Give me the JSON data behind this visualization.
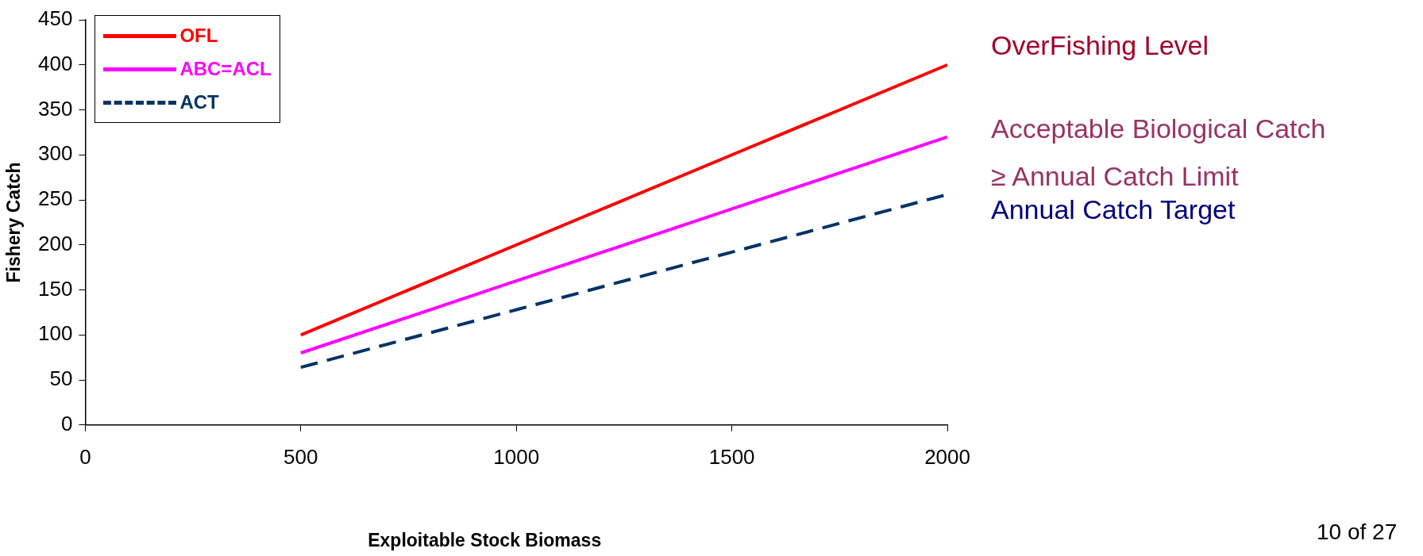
{
  "chart_data": {
    "type": "line",
    "xlabel": "Exploitable Stock Biomass",
    "ylabel": "Fishery Catch",
    "x": [
      500,
      1000,
      1500,
      2000
    ],
    "series": [
      {
        "name": "OFL",
        "color": "#ff0000",
        "values": [
          100,
          200,
          300,
          400
        ]
      },
      {
        "name": "ABC=ACL",
        "color": "#ff00ff",
        "values": [
          80,
          160,
          240,
          320
        ]
      },
      {
        "name": "ACT",
        "color": "#003366",
        "values": [
          64,
          128,
          192,
          256
        ],
        "line_style": "dashed"
      }
    ],
    "xlim": [
      0,
      2000
    ],
    "xticks": [
      0,
      500,
      1000,
      1500,
      2000
    ],
    "ylim": [
      0,
      450
    ],
    "yticks": [
      0,
      50,
      100,
      150,
      200,
      250,
      300,
      350,
      400,
      450
    ],
    "grid": false,
    "legend": "top left",
    "marker": "none",
    "annotations": [
      "OverFishing Level",
      "Acceptable Biological Catch",
      "≥ Annual Catch Limit",
      "Annual Catch Target",
      "10 of 27"
    ]
  }
}
